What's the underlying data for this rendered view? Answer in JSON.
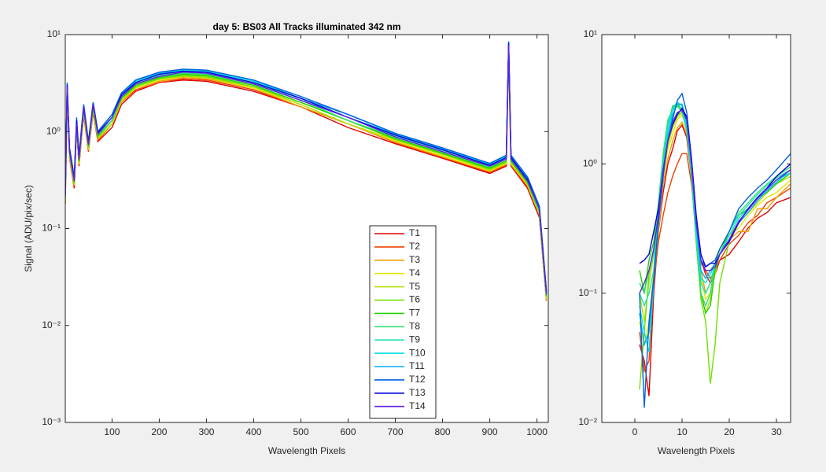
{
  "chart_data": [
    {
      "type": "line",
      "title": "day 5: BS03   All Tracks illuminated   342 nm",
      "xlabel": "Wavelength Pixels",
      "ylabel": "Signal (ADU/pix/sec)",
      "yscale": "log",
      "legend": "south-east",
      "xlim": [
        1,
        1024
      ],
      "ylim": [
        0.001,
        10
      ],
      "xticks": [
        100,
        200,
        300,
        400,
        500,
        600,
        700,
        800,
        900,
        1000
      ],
      "yticks": [
        {
          "value": 0.001,
          "label": "10⁻³"
        },
        {
          "value": 0.01,
          "label": "10⁻²"
        },
        {
          "value": 0.1,
          "label": "10⁻¹"
        },
        {
          "value": 1,
          "label": "10⁰"
        },
        {
          "value": 10,
          "label": "10¹"
        }
      ],
      "x": [
        1,
        5,
        10,
        20,
        25,
        30,
        40,
        50,
        60,
        70,
        100,
        120,
        150,
        200,
        250,
        300,
        400,
        500,
        600,
        700,
        800,
        900,
        935,
        940,
        945,
        980,
        1005,
        1020
      ],
      "series": [
        {
          "name": "T1",
          "color": "#e00000",
          "values": [
            0.18,
            2.5,
            0.53,
            0.26,
            1.1,
            0.44,
            1.5,
            0.62,
            1.6,
            0.79,
            1.1,
            1.9,
            2.6,
            3.2,
            3.4,
            3.3,
            2.6,
            1.8,
            1.1,
            0.75,
            0.53,
            0.37,
            0.44,
            6.6,
            0.44,
            0.26,
            0.13,
            0.018
          ]
        },
        {
          "name": "T2",
          "color": "#f04000",
          "values": [
            0.18,
            2.5,
            0.54,
            0.27,
            1.1,
            0.45,
            1.5,
            0.63,
            1.6,
            0.81,
            1.2,
            2.0,
            2.7,
            3.2,
            3.5,
            3.4,
            2.7,
            1.8,
            1.2,
            0.77,
            0.54,
            0.38,
            0.45,
            6.8,
            0.45,
            0.27,
            0.14,
            0.018
          ]
        },
        {
          "name": "T3",
          "color": "#f0a000",
          "values": [
            0.18,
            2.6,
            0.55,
            0.28,
            1.1,
            0.46,
            1.6,
            0.64,
            1.7,
            0.83,
            1.2,
            2.0,
            2.8,
            3.3,
            3.6,
            3.5,
            2.8,
            1.8,
            1.2,
            0.78,
            0.55,
            0.39,
            0.46,
            6.9,
            0.46,
            0.28,
            0.14,
            0.018
          ]
        },
        {
          "name": "T4",
          "color": "#e6e600",
          "values": [
            0.19,
            2.6,
            0.56,
            0.28,
            1.1,
            0.47,
            1.6,
            0.66,
            1.7,
            0.85,
            1.2,
            2.1,
            2.8,
            3.4,
            3.7,
            3.6,
            2.8,
            1.9,
            1.2,
            0.8,
            0.56,
            0.39,
            0.47,
            7.1,
            0.47,
            0.28,
            0.14,
            0.019
          ]
        },
        {
          "name": "T5",
          "color": "#b0e000",
          "values": [
            0.19,
            2.7,
            0.58,
            0.29,
            1.2,
            0.48,
            1.6,
            0.67,
            1.7,
            0.86,
            1.2,
            2.1,
            2.9,
            3.5,
            3.7,
            3.6,
            2.9,
            1.9,
            1.2,
            0.82,
            0.58,
            0.4,
            0.48,
            7.2,
            0.48,
            0.29,
            0.14,
            0.019
          ]
        },
        {
          "name": "T6",
          "color": "#70e000",
          "values": [
            0.2,
            2.7,
            0.59,
            0.29,
            1.2,
            0.49,
            1.7,
            0.69,
            1.8,
            0.88,
            1.3,
            2.2,
            2.9,
            3.5,
            3.8,
            3.7,
            2.9,
            2.0,
            1.3,
            0.83,
            0.59,
            0.41,
            0.49,
            7.4,
            0.49,
            0.29,
            0.15,
            0.02
          ]
        },
        {
          "name": "T7",
          "color": "#20d000",
          "values": [
            0.2,
            2.8,
            0.6,
            0.3,
            1.2,
            0.5,
            1.7,
            0.7,
            1.8,
            0.9,
            1.3,
            2.2,
            3.0,
            3.6,
            3.9,
            3.8,
            3.0,
            2.0,
            1.3,
            0.85,
            0.6,
            0.42,
            0.5,
            7.5,
            0.5,
            0.3,
            0.15,
            0.02
          ]
        },
        {
          "name": "T8",
          "color": "#30e070",
          "values": [
            0.21,
            2.9,
            0.62,
            0.31,
            1.2,
            0.52,
            1.8,
            0.72,
            1.9,
            0.93,
            1.3,
            2.3,
            3.1,
            3.7,
            4.0,
            3.9,
            3.1,
            2.1,
            1.3,
            0.88,
            0.62,
            0.43,
            0.52,
            7.7,
            0.52,
            0.31,
            0.15,
            0.021
          ]
        },
        {
          "name": "T9",
          "color": "#20e0b0",
          "values": [
            0.21,
            3.0,
            0.64,
            0.32,
            1.3,
            0.53,
            1.8,
            0.74,
            1.9,
            0.95,
            1.4,
            2.3,
            3.2,
            3.8,
            4.1,
            4.0,
            3.2,
            2.1,
            1.4,
            0.9,
            0.64,
            0.45,
            0.53,
            8.0,
            0.53,
            0.32,
            0.16,
            0.021
          ]
        },
        {
          "name": "T10",
          "color": "#00e0e0",
          "values": [
            0.22,
            3.1,
            0.66,
            0.33,
            1.3,
            0.55,
            1.9,
            0.77,
            2.0,
            0.99,
            1.4,
            2.4,
            3.3,
            4.0,
            4.3,
            4.2,
            3.3,
            2.2,
            1.4,
            0.94,
            0.66,
            0.46,
            0.55,
            8.3,
            0.55,
            0.33,
            0.17,
            0.022
          ]
        },
        {
          "name": "T11",
          "color": "#00b0f0",
          "values": [
            0.22,
            3.1,
            0.67,
            0.34,
            1.3,
            0.56,
            1.9,
            0.78,
            2.0,
            1.0,
            1.5,
            2.5,
            3.4,
            4.0,
            4.4,
            4.3,
            3.4,
            2.2,
            1.5,
            0.95,
            0.67,
            0.47,
            0.56,
            8.4,
            0.56,
            0.34,
            0.17,
            0.022
          ]
        },
        {
          "name": "T12",
          "color": "#0060e0",
          "values": [
            0.23,
            3.2,
            0.68,
            0.34,
            1.4,
            0.57,
            1.9,
            0.79,
            2.0,
            1.0,
            1.5,
            2.5,
            3.4,
            4.1,
            4.4,
            4.3,
            3.4,
            2.3,
            1.5,
            0.96,
            0.68,
            0.47,
            0.57,
            8.5,
            0.57,
            0.34,
            0.17,
            0.023
          ]
        },
        {
          "name": "T13",
          "color": "#0000e0",
          "values": [
            0.22,
            3.0,
            0.65,
            0.32,
            1.3,
            0.54,
            1.8,
            0.76,
            1.9,
            0.97,
            1.4,
            2.4,
            3.2,
            3.9,
            4.2,
            4.1,
            3.2,
            2.2,
            1.4,
            0.92,
            0.65,
            0.45,
            0.54,
            8.1,
            0.54,
            0.32,
            0.16,
            0.022
          ]
        },
        {
          "name": "T14",
          "color": "#6020e0",
          "values": [
            0.21,
            2.9,
            0.62,
            0.31,
            1.2,
            0.52,
            1.8,
            0.73,
            1.9,
            0.94,
            1.4,
            2.3,
            3.1,
            3.7,
            4.1,
            4.0,
            3.1,
            2.1,
            1.4,
            0.88,
            0.62,
            0.44,
            0.52,
            7.8,
            0.52,
            0.31,
            0.16,
            0.021
          ]
        }
      ]
    },
    {
      "type": "line",
      "xlabel": "Wavelength Pixels",
      "yscale": "log",
      "xlim": [
        -7,
        33
      ],
      "ylim": [
        0.01,
        10
      ],
      "xticks": [
        0,
        10,
        20,
        30
      ],
      "yticks": [
        {
          "value": 0.01,
          "label": "10⁻²"
        },
        {
          "value": 0.1,
          "label": "10⁻¹"
        },
        {
          "value": 1,
          "label": "10⁰"
        },
        {
          "value": 10,
          "label": "10¹"
        }
      ],
      "x": [
        1,
        2,
        3,
        4,
        5,
        6,
        7,
        8,
        9,
        10,
        11,
        12,
        13,
        14,
        15,
        16,
        17,
        18,
        20,
        22,
        24,
        26,
        28,
        30,
        33
      ],
      "series": [
        {
          "color": "#e00000",
          "values": [
            0.04,
            0.03,
            0.016,
            0.1,
            0.3,
            0.6,
            1.0,
            1.3,
            1.8,
            2.0,
            1.6,
            0.8,
            0.3,
            0.18,
            0.14,
            0.12,
            0.14,
            0.18,
            0.2,
            0.25,
            0.32,
            0.38,
            0.42,
            0.5,
            0.55
          ]
        },
        {
          "color": "#f04000",
          "values": [
            0.05,
            0.025,
            0.03,
            0.12,
            0.25,
            0.4,
            0.6,
            0.8,
            1.0,
            1.2,
            1.2,
            0.7,
            0.3,
            0.17,
            0.15,
            0.13,
            0.15,
            0.18,
            0.24,
            0.28,
            0.35,
            0.4,
            0.5,
            0.55,
            0.65
          ]
        },
        {
          "color": "#f0a000",
          "values": [
            0.06,
            0.04,
            0.05,
            0.14,
            0.3,
            0.7,
            1.1,
            1.5,
            1.9,
            2.1,
            1.7,
            0.9,
            0.35,
            0.15,
            0.1,
            0.12,
            0.16,
            0.2,
            0.26,
            0.3,
            0.3,
            0.45,
            0.45,
            0.55,
            0.7
          ]
        },
        {
          "color": "#e6e600",
          "values": [
            0.06,
            0.04,
            0.06,
            0.15,
            0.35,
            0.8,
            1.3,
            1.7,
            2.2,
            2.4,
            1.9,
            0.9,
            0.3,
            0.13,
            0.09,
            0.1,
            0.14,
            0.22,
            0.28,
            0.32,
            0.4,
            0.48,
            0.55,
            0.6,
            0.75
          ]
        },
        {
          "color": "#b0e000",
          "values": [
            0.1,
            0.06,
            0.12,
            0.2,
            0.4,
            0.9,
            1.4,
            1.9,
            2.3,
            2.5,
            2.0,
            1.0,
            0.3,
            0.1,
            0.07,
            0.09,
            0.15,
            0.2,
            0.28,
            0.35,
            0.42,
            0.5,
            0.6,
            0.7,
            0.8
          ]
        },
        {
          "color": "#70e000",
          "values": [
            0.018,
            0.05,
            0.14,
            0.22,
            0.45,
            1.0,
            1.6,
            2.1,
            2.4,
            2.5,
            1.9,
            0.9,
            0.25,
            0.09,
            0.06,
            0.02,
            0.04,
            0.12,
            0.25,
            0.35,
            0.45,
            0.55,
            0.65,
            0.75,
            0.9
          ]
        },
        {
          "color": "#20d000",
          "values": [
            0.15,
            0.1,
            0.18,
            0.25,
            0.5,
            1.1,
            2.0,
            2.8,
            2.9,
            2.6,
            1.8,
            0.8,
            0.25,
            0.1,
            0.07,
            0.08,
            0.15,
            0.2,
            0.3,
            0.4,
            0.45,
            0.55,
            0.6,
            0.7,
            0.85
          ]
        },
        {
          "color": "#30e070",
          "values": [
            0.12,
            0.1,
            0.15,
            0.2,
            0.5,
            1.2,
            2.2,
            2.6,
            2.8,
            2.5,
            1.8,
            0.8,
            0.25,
            0.1,
            0.08,
            0.1,
            0.17,
            0.22,
            0.3,
            0.42,
            0.5,
            0.6,
            0.7,
            0.8,
            0.95
          ]
        },
        {
          "color": "#20e0b0",
          "values": [
            0.1,
            0.08,
            0.1,
            0.15,
            0.45,
            1.0,
            2.0,
            2.7,
            3.0,
            2.6,
            1.9,
            0.9,
            0.3,
            0.12,
            0.1,
            0.12,
            0.17,
            0.22,
            0.3,
            0.4,
            0.48,
            0.58,
            0.68,
            0.78,
            0.9
          ]
        },
        {
          "color": "#00e0e0",
          "values": [
            0.08,
            0.05,
            0.035,
            0.12,
            0.4,
            0.9,
            1.8,
            2.6,
            3.0,
            2.8,
            2.0,
            0.9,
            0.3,
            0.13,
            0.12,
            0.14,
            0.17,
            0.2,
            0.28,
            0.38,
            0.45,
            0.55,
            0.65,
            0.75,
            0.85
          ]
        },
        {
          "color": "#00b0f0",
          "values": [
            0.07,
            0.04,
            0.05,
            0.12,
            0.35,
            0.8,
            1.6,
            2.4,
            2.9,
            2.9,
            2.1,
            1.0,
            0.35,
            0.15,
            0.13,
            0.15,
            0.17,
            0.2,
            0.26,
            0.35,
            0.42,
            0.52,
            0.62,
            0.72,
            0.9
          ]
        },
        {
          "color": "#0060e0",
          "values": [
            0.1,
            0.013,
            0.06,
            0.13,
            0.35,
            0.8,
            1.5,
            2.2,
            3.1,
            3.5,
            2.5,
            1.1,
            0.4,
            0.18,
            0.16,
            0.17,
            0.18,
            0.22,
            0.3,
            0.45,
            0.55,
            0.65,
            0.75,
            0.9,
            1.2
          ]
        },
        {
          "color": "#0000e0",
          "values": [
            0.17,
            0.18,
            0.2,
            0.3,
            0.45,
            0.9,
            1.5,
            2.0,
            2.4,
            2.7,
            2.3,
            1.1,
            0.4,
            0.2,
            0.16,
            0.17,
            0.17,
            0.2,
            0.25,
            0.35,
            0.45,
            0.55,
            0.65,
            0.8,
            1.0
          ]
        },
        {
          "color": "#6020e0",
          "values": [
            0.1,
            0.12,
            0.15,
            0.22,
            0.4,
            0.9,
            1.5,
            2.1,
            2.5,
            2.6,
            2.2,
            1.0,
            0.35,
            0.18,
            0.15,
            0.15,
            0.16,
            0.2,
            0.26,
            0.36,
            0.44,
            0.54,
            0.64,
            0.75,
            0.9
          ]
        }
      ]
    }
  ]
}
